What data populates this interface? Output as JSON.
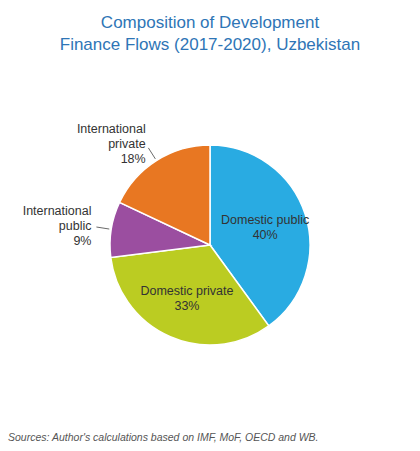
{
  "chart_data": {
    "type": "pie",
    "title": "Composition of Development\nFinance Flows (2017-2020), Uzbekistan",
    "categories": [
      "Domestic public",
      "Domestic private",
      "International\npublic",
      "International\nprivate"
    ],
    "values": [
      40,
      33,
      9,
      18
    ],
    "value_labels": [
      "40%",
      "33%",
      "9%",
      "18%"
    ],
    "colors": [
      "#29ABE2",
      "#BBCC22",
      "#9B4EA0",
      "#E87722"
    ],
    "data_labels": true,
    "annotations": [
      "Sources: Author's calculations based on IMF, MoF, OECD and WB."
    ]
  }
}
